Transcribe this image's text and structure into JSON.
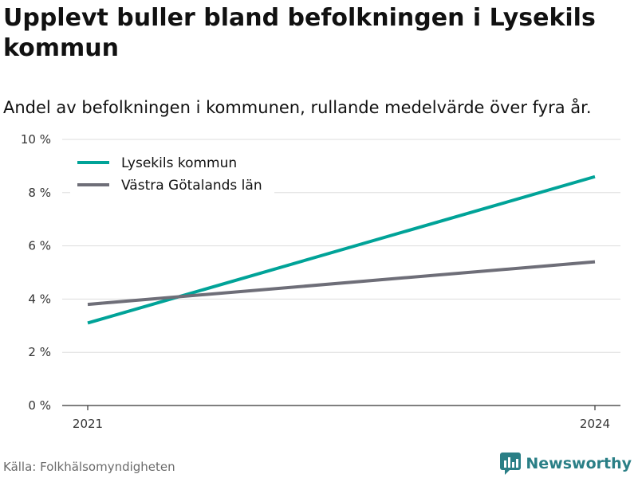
{
  "title": "Upplevt buller bland befolkningen i Lysekils kommun",
  "subtitle": "Andel av befolkningen i kommunen, rullande medelvärde över fyra år.",
  "source": "Källa: Folkhälsomyndigheten",
  "brand": "Newsworthy",
  "chart_data": {
    "type": "line",
    "x": [
      "2021",
      "2024"
    ],
    "ylim": [
      0,
      10
    ],
    "yticks": [
      0,
      2,
      4,
      6,
      8,
      10
    ],
    "ytick_labels": [
      "0 %",
      "2 %",
      "4 %",
      "6 %",
      "8 %",
      "10 %"
    ],
    "grid": true,
    "legend_position": "top-left",
    "series": [
      {
        "name": "Lysekils kommun",
        "values": [
          3.1,
          8.6
        ],
        "color": "#00a398"
      },
      {
        "name": "Västra Götalands län",
        "values": [
          3.8,
          5.4
        ],
        "color": "#6e6e78"
      }
    ]
  },
  "colors": {
    "brand": "#2a7f86",
    "grid": "#dddddd",
    "axis": "#333333"
  }
}
